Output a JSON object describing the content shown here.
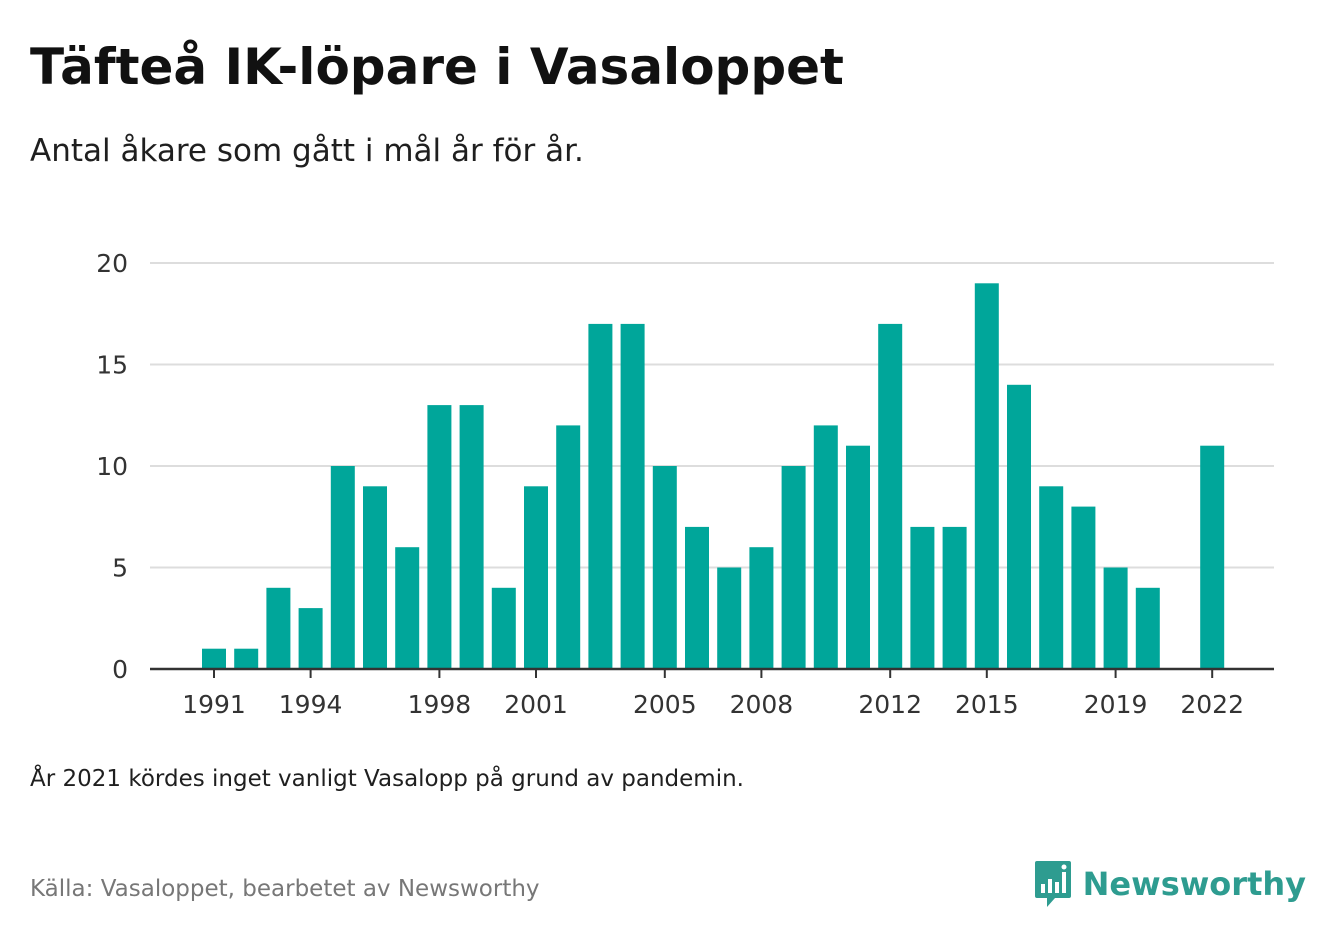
{
  "header": {
    "title": "Täfteå IK-löpare i Vasaloppet",
    "subtitle": "Antal åkare som gått i mål år för år."
  },
  "footer": {
    "note": "År 2021 kördes inget vanligt Vasalopp på grund av pandemin.",
    "source": "Källa: Vasaloppet, bearbetet av Newsworthy",
    "brand": "Newsworthy",
    "brand_icon": "bar-chart-speech-bubble-icon"
  },
  "colors": {
    "bar": "#00a69a",
    "brand": "#2e9c90",
    "grid": "#dddddd",
    "axis": "#333333"
  },
  "chart_data": {
    "type": "bar",
    "title": "Täfteå IK-löpare i Vasaloppet",
    "subtitle": "Antal åkare som gått i mål år för år.",
    "xlabel": "",
    "ylabel": "",
    "categories": [
      1991,
      1992,
      1993,
      1994,
      1995,
      1996,
      1997,
      1998,
      1999,
      2000,
      2001,
      2002,
      2003,
      2004,
      2005,
      2006,
      2007,
      2008,
      2009,
      2010,
      2011,
      2012,
      2013,
      2014,
      2015,
      2016,
      2017,
      2018,
      2019,
      2020,
      2021,
      2022
    ],
    "values": [
      1,
      1,
      4,
      3,
      10,
      9,
      6,
      13,
      13,
      4,
      9,
      12,
      17,
      17,
      10,
      7,
      5,
      6,
      10,
      12,
      11,
      17,
      7,
      7,
      19,
      14,
      9,
      8,
      5,
      4,
      null,
      11
    ],
    "x_tick_labels": [
      "1991",
      "1994",
      "1998",
      "2001",
      "2005",
      "2008",
      "2012",
      "2015",
      "2019",
      "2022"
    ],
    "y_ticks": [
      0,
      5,
      10,
      15,
      20
    ],
    "ylim": [
      0,
      20
    ],
    "grid": "horizontal",
    "legend": "none"
  }
}
